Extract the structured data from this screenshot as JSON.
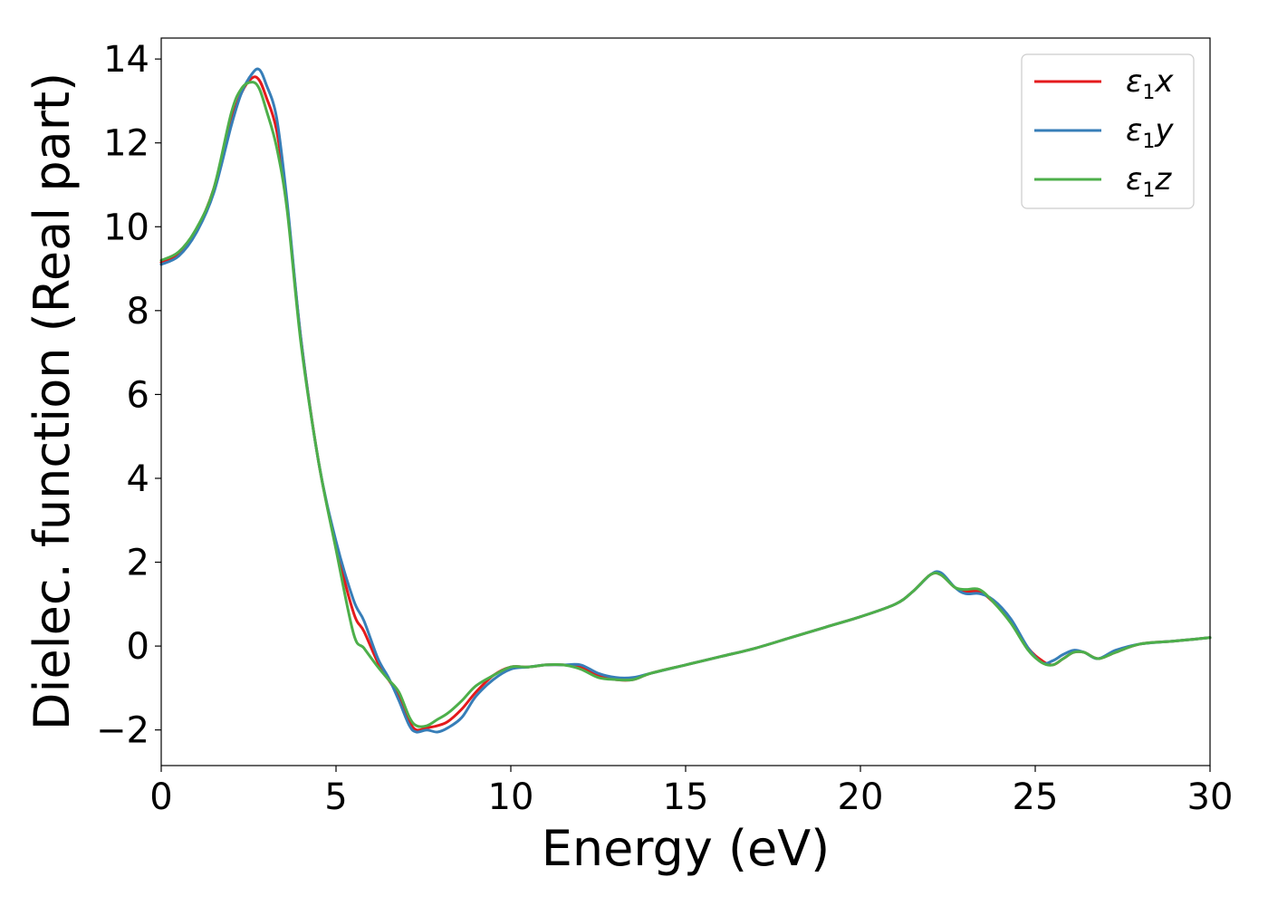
{
  "chart_data": {
    "type": "line",
    "xlabel": "Energy (eV)",
    "ylabel": "Dielec. function (Real part)",
    "xlim": [
      0,
      30
    ],
    "ylim": [
      -2.85,
      14.5
    ],
    "xticks": [
      0,
      5,
      10,
      15,
      20,
      25,
      30
    ],
    "xtick_labels": [
      "0",
      "5",
      "10",
      "15",
      "20",
      "25",
      "30"
    ],
    "yticks": [
      -2,
      0,
      2,
      4,
      6,
      8,
      10,
      12,
      14
    ],
    "ytick_labels": [
      "−2",
      "0",
      "2",
      "4",
      "6",
      "8",
      "10",
      "12",
      "14"
    ],
    "grid": false,
    "legend_position": "top-right",
    "series": [
      {
        "name": "ε₁x",
        "name_base": "ε",
        "name_sub": "1",
        "name_tail": "x",
        "color": "#e41a1c",
        "x": [
          0,
          0.5,
          1.0,
          1.5,
          2.0,
          2.3,
          2.6,
          2.8,
          3.0,
          3.3,
          3.6,
          4.0,
          4.5,
          5.0,
          5.5,
          5.8,
          6.2,
          6.5,
          6.8,
          7.1,
          7.3,
          7.6,
          7.9,
          8.2,
          8.6,
          9.0,
          9.5,
          10.0,
          10.5,
          11.0,
          11.5,
          12.0,
          12.5,
          13.0,
          13.5,
          14.0,
          15.0,
          16.0,
          17.0,
          18.0,
          19.0,
          20.0,
          21.0,
          21.5,
          22.0,
          22.3,
          22.7,
          23.0,
          23.4,
          23.8,
          24.3,
          24.8,
          25.2,
          25.5,
          25.8,
          26.1,
          26.4,
          26.8,
          27.3,
          28.0,
          29.0,
          30.0
        ],
        "y": [
          9.15,
          9.35,
          9.9,
          10.9,
          12.5,
          13.2,
          13.55,
          13.5,
          13.1,
          12.3,
          10.5,
          7.3,
          4.4,
          2.4,
          0.8,
          0.35,
          -0.4,
          -0.8,
          -1.2,
          -1.8,
          -2.0,
          -1.95,
          -1.9,
          -1.8,
          -1.5,
          -1.1,
          -0.7,
          -0.5,
          -0.5,
          -0.45,
          -0.45,
          -0.5,
          -0.7,
          -0.8,
          -0.8,
          -0.65,
          -0.45,
          -0.25,
          -0.05,
          0.2,
          0.45,
          0.7,
          1.0,
          1.3,
          1.7,
          1.7,
          1.4,
          1.3,
          1.3,
          1.05,
          0.6,
          -0.05,
          -0.35,
          -0.45,
          -0.3,
          -0.15,
          -0.15,
          -0.3,
          -0.15,
          0.05,
          0.12,
          0.2
        ]
      },
      {
        "name": "ε₁y",
        "name_base": "ε",
        "name_sub": "1",
        "name_tail": "y",
        "color": "#377eb8",
        "x": [
          0,
          0.5,
          1.0,
          1.5,
          2.0,
          2.3,
          2.6,
          2.8,
          3.0,
          3.3,
          3.6,
          4.0,
          4.5,
          5.0,
          5.5,
          5.8,
          6.2,
          6.5,
          6.8,
          7.1,
          7.3,
          7.6,
          7.9,
          8.2,
          8.6,
          9.0,
          9.5,
          10.0,
          10.5,
          11.0,
          11.5,
          12.0,
          12.5,
          13.0,
          13.5,
          14.0,
          15.0,
          16.0,
          17.0,
          18.0,
          19.0,
          20.0,
          21.0,
          21.5,
          22.0,
          22.3,
          22.7,
          23.0,
          23.4,
          23.8,
          24.3,
          24.8,
          25.2,
          25.5,
          25.8,
          26.1,
          26.4,
          26.8,
          27.3,
          28.0,
          29.0,
          30.0
        ],
        "y": [
          9.1,
          9.3,
          9.85,
          10.8,
          12.4,
          13.2,
          13.65,
          13.75,
          13.4,
          12.6,
          10.6,
          7.3,
          4.4,
          2.5,
          1.1,
          0.6,
          -0.3,
          -0.75,
          -1.3,
          -1.9,
          -2.05,
          -2.0,
          -2.05,
          -1.95,
          -1.7,
          -1.2,
          -0.8,
          -0.55,
          -0.5,
          -0.45,
          -0.45,
          -0.45,
          -0.65,
          -0.75,
          -0.75,
          -0.65,
          -0.45,
          -0.25,
          -0.05,
          0.2,
          0.45,
          0.7,
          1.0,
          1.3,
          1.7,
          1.75,
          1.4,
          1.25,
          1.25,
          1.1,
          0.65,
          -0.05,
          -0.4,
          -0.35,
          -0.2,
          -0.1,
          -0.15,
          -0.3,
          -0.1,
          0.05,
          0.12,
          0.2
        ]
      },
      {
        "name": "ε₁z",
        "name_base": "ε",
        "name_sub": "1",
        "name_tail": "z",
        "color": "#4daf4a",
        "x": [
          0,
          0.5,
          1.0,
          1.5,
          2.0,
          2.3,
          2.6,
          2.8,
          3.0,
          3.3,
          3.6,
          4.0,
          4.5,
          5.0,
          5.5,
          5.8,
          6.2,
          6.5,
          6.8,
          7.1,
          7.3,
          7.6,
          7.9,
          8.2,
          8.6,
          9.0,
          9.5,
          10.0,
          10.5,
          11.0,
          11.5,
          12.0,
          12.5,
          13.0,
          13.5,
          14.0,
          15.0,
          16.0,
          17.0,
          18.0,
          19.0,
          20.0,
          21.0,
          21.5,
          22.0,
          22.3,
          22.7,
          23.0,
          23.4,
          23.8,
          24.3,
          24.8,
          25.2,
          25.5,
          25.8,
          26.1,
          26.4,
          26.8,
          27.3,
          28.0,
          29.0,
          30.0
        ],
        "y": [
          9.2,
          9.4,
          9.95,
          10.9,
          12.7,
          13.3,
          13.45,
          13.3,
          12.8,
          11.9,
          10.4,
          7.2,
          4.4,
          2.3,
          0.3,
          -0.05,
          -0.5,
          -0.8,
          -1.1,
          -1.7,
          -1.9,
          -1.9,
          -1.75,
          -1.6,
          -1.3,
          -0.95,
          -0.7,
          -0.5,
          -0.5,
          -0.45,
          -0.45,
          -0.55,
          -0.75,
          -0.8,
          -0.8,
          -0.65,
          -0.45,
          -0.25,
          -0.05,
          0.2,
          0.45,
          0.7,
          1.0,
          1.3,
          1.7,
          1.7,
          1.4,
          1.35,
          1.35,
          1.05,
          0.55,
          -0.1,
          -0.4,
          -0.45,
          -0.3,
          -0.15,
          -0.15,
          -0.3,
          -0.15,
          0.05,
          0.12,
          0.2
        ]
      }
    ]
  }
}
